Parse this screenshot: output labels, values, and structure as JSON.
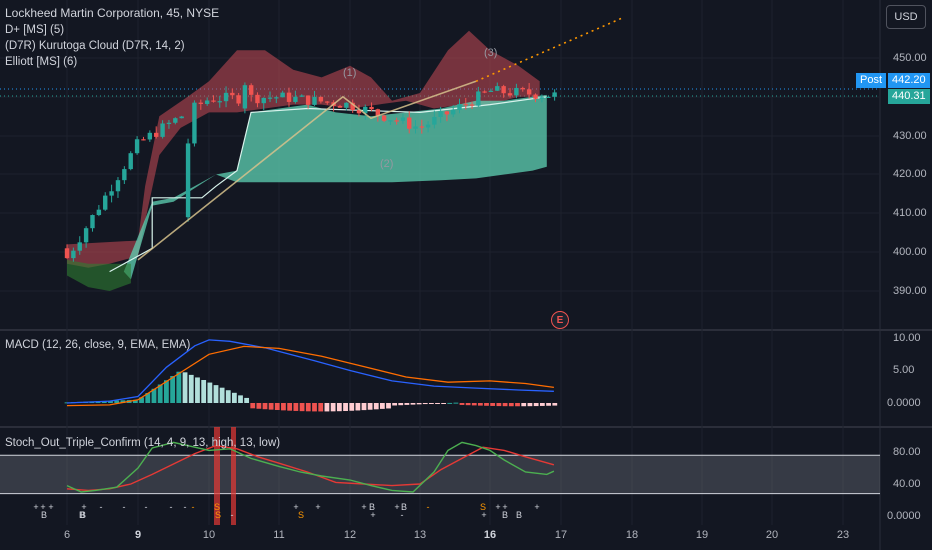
{
  "header": {
    "title": "Lockheed Martin Corporation, 45, NYSE",
    "indicator_1": "D+ [MS] (5)",
    "indicator_2": "(D7R) Kurutoga Cloud (D7R, 14, 2)",
    "indicator_3": "Elliott [MS] (6)",
    "currency_button": "USD",
    "earnings_icon": "E"
  },
  "price_axis": {
    "ticks": [
      "450.00",
      "440.00",
      "430.00",
      "420.00",
      "410.00",
      "400.00",
      "390.00"
    ],
    "post_label": "Post",
    "post_price": "442.20",
    "last_price": "440.31"
  },
  "macd_pane": {
    "title": "MACD (12, 26, close, 9, EMA, EMA)",
    "ticks": [
      "10.00",
      "5.00",
      "0.0000"
    ]
  },
  "stoch_pane": {
    "title": "Stoch_Out_Triple_Confirm (14, 4, 9, 13, high, 13, low)",
    "ticks": [
      "80.00",
      "40.00",
      "0.0000"
    ]
  },
  "waves": [
    "(1)",
    "(2)",
    "(3)"
  ],
  "x_axis": {
    "labels": [
      "6",
      "9",
      "10",
      "11",
      "12",
      "13",
      "16",
      "17",
      "18",
      "19",
      "20",
      "23"
    ],
    "bold": [
      "9",
      "16"
    ]
  },
  "signals": [
    "+",
    "+",
    "+",
    "B",
    "B",
    "+",
    "B",
    "-",
    "-",
    "-",
    "-",
    "-",
    "-",
    "S",
    "S",
    "-",
    "S",
    "+",
    "+",
    "+",
    "B",
    "+",
    "+",
    "B",
    "-",
    "-",
    "S",
    "+",
    "+",
    "+",
    "B",
    "B",
    "+"
  ],
  "colors": {
    "background": "#131722",
    "up": "#26a69a",
    "down": "#ef5350",
    "cloud_green": "#5fd3b4",
    "cloud_red": "#c94a55",
    "macd_line": "#2962ff",
    "signal_line": "#ff6d00",
    "stoch_green": "#4caf50",
    "stoch_red": "#e53935",
    "post_badge": "#2196f3",
    "last_badge": "#26a69a",
    "elliott_line": "#ff9800"
  },
  "chart_data": [
    {
      "type": "candlestick",
      "title": "Lockheed Martin Corporation, 45, NYSE",
      "ylim": [
        382,
        462
      ],
      "x": [
        "6",
        "9",
        "10",
        "11",
        "12",
        "13",
        "16",
        "17"
      ],
      "close": [
        398.5,
        428,
        439.5,
        440,
        438,
        432,
        441.5,
        440.31
      ],
      "post_price": 442.2,
      "last_price": 440.31
    },
    {
      "type": "line",
      "title": "MACD (12, 26, close, 9, EMA, EMA)",
      "ylim": [
        -2,
        12
      ],
      "x": [
        "6",
        "9",
        "10",
        "11",
        "12",
        "13",
        "16",
        "17"
      ],
      "series": [
        {
          "values": [
            0,
            1.5,
            9.7,
            8.0,
            5.0,
            2.8,
            2.2,
            1.8
          ]
        },
        {
          "values": [
            -0.5,
            0.8,
            7.5,
            8.8,
            6.8,
            4.0,
            3.5,
            2.5
          ]
        }
      ]
    },
    {
      "type": "line",
      "title": "Stoch_Out_Triple_Confirm (14, 4, 9, 13, high, 13, low)",
      "ylim": [
        0,
        100
      ],
      "x": [
        "6",
        "9",
        "10",
        "11",
        "12",
        "13",
        "16",
        "17"
      ],
      "bands": [
        28,
        76
      ],
      "series": [
        {
          "values": [
            30,
            90,
            82,
            62,
            50,
            28,
            92,
            55
          ]
        },
        {
          "values": [
            32,
            55,
            88,
            70,
            40,
            38,
            82,
            60
          ]
        }
      ]
    }
  ]
}
